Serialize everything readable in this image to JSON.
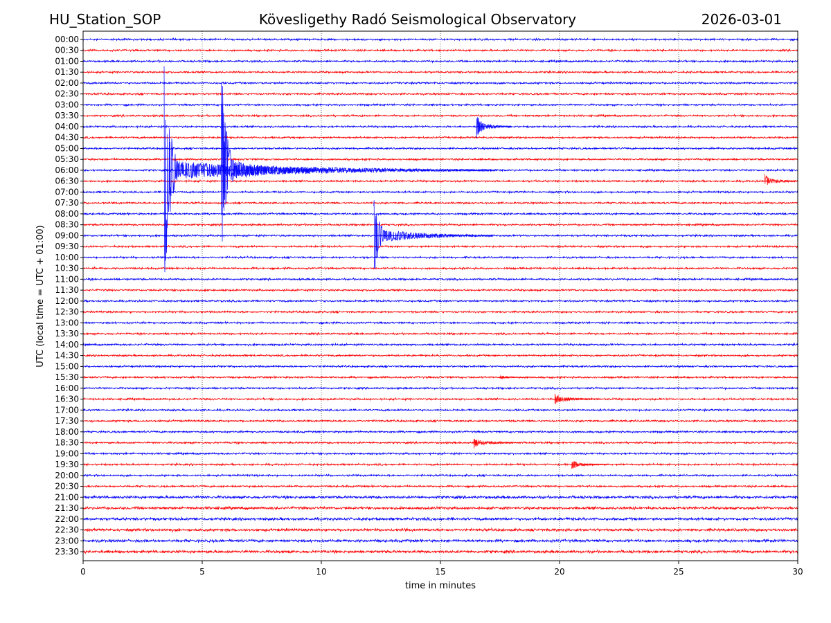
{
  "chart_data": {
    "type": "line",
    "title_left": "HU_Station_SOP",
    "title": "Kövesligethy Radó Seismological Observatory",
    "title_right": "2026-03-01",
    "xlabel": "time in minutes",
    "ylabel": "UTC (local time = UTC + 01:00)",
    "xlim": [
      0,
      30
    ],
    "xticks": [
      "0",
      "5",
      "10",
      "15",
      "20",
      "25",
      "30"
    ],
    "grid": "vertical dotted",
    "row_labels": [
      "00:00",
      "00:30",
      "01:00",
      "01:30",
      "02:00",
      "02:30",
      "03:00",
      "03:30",
      "04:00",
      "04:30",
      "05:00",
      "05:30",
      "06:00",
      "06:30",
      "07:00",
      "07:30",
      "08:00",
      "08:30",
      "09:00",
      "09:30",
      "10:00",
      "10:30",
      "11:00",
      "11:30",
      "12:00",
      "12:30",
      "13:00",
      "13:30",
      "14:00",
      "14:30",
      "15:00",
      "15:30",
      "16:00",
      "16:30",
      "17:00",
      "17:30",
      "18:00",
      "18:30",
      "19:00",
      "19:30",
      "20:00",
      "20:30",
      "21:00",
      "21:30",
      "22:00",
      "22:30",
      "23:00",
      "23:30"
    ],
    "trace_colors": [
      "#0000ff",
      "#ff0000"
    ],
    "events": [
      {
        "row": "06:00",
        "onset_min": 3.4,
        "amplitude_rows": 12,
        "duration_min": 14,
        "coda_rows": 0.9
      },
      {
        "row": "06:00",
        "onset_min": 5.8,
        "amplitude_rows": 10,
        "duration_min": 5,
        "coda_rows": 1.1
      },
      {
        "row": "04:00",
        "onset_min": 16.5,
        "amplitude_rows": 1.2,
        "duration_min": 1.5,
        "coda_rows": 0.5
      },
      {
        "row": "06:30",
        "onset_min": 28.6,
        "amplitude_rows": 0.7,
        "duration_min": 1.4,
        "coda_rows": 0.4
      },
      {
        "row": "09:00",
        "onset_min": 12.2,
        "amplitude_rows": 4,
        "duration_min": 5,
        "coda_rows": 0.7
      },
      {
        "row": "15:30",
        "onset_min": 17.5,
        "amplitude_rows": 0.2,
        "duration_min": 1.2,
        "coda_rows": 0.15
      },
      {
        "row": "16:30",
        "onset_min": 19.8,
        "amplitude_rows": 0.6,
        "duration_min": 2,
        "coda_rows": 0.3
      },
      {
        "row": "18:30",
        "onset_min": 16.4,
        "amplitude_rows": 0.6,
        "duration_min": 2,
        "coda_rows": 0.3
      },
      {
        "row": "19:30",
        "onset_min": 20.5,
        "amplitude_rows": 0.6,
        "duration_min": 1.5,
        "coda_rows": 0.3
      }
    ]
  }
}
